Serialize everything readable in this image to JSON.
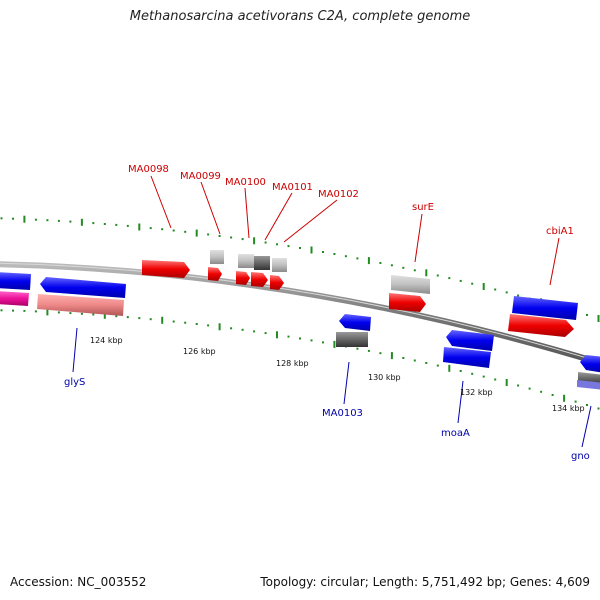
{
  "title": "Methanosarcina acetivorans C2A, complete genome",
  "footer": {
    "accession": "Accession: NC_003552",
    "summary": "Topology: circular; Length: 5,751,492 bp; Genes: 4,609"
  },
  "colors": {
    "plus_strand_label": "#cc0000",
    "minus_strand_label": "#0000aa",
    "backbone": "#888888",
    "tick": "#228b22"
  },
  "scale_labels": [
    "124 kbp",
    "126 kbp",
    "128 kbp",
    "130 kbp",
    "132 kbp",
    "134 kbp"
  ],
  "gene_labels": {
    "plus": [
      "MA0098",
      "MA0099",
      "MA0100",
      "MA0101",
      "MA0102",
      "surE",
      "cbiA1"
    ],
    "minus": [
      "glyS",
      "MA0103",
      "moaA",
      "gno"
    ]
  }
}
